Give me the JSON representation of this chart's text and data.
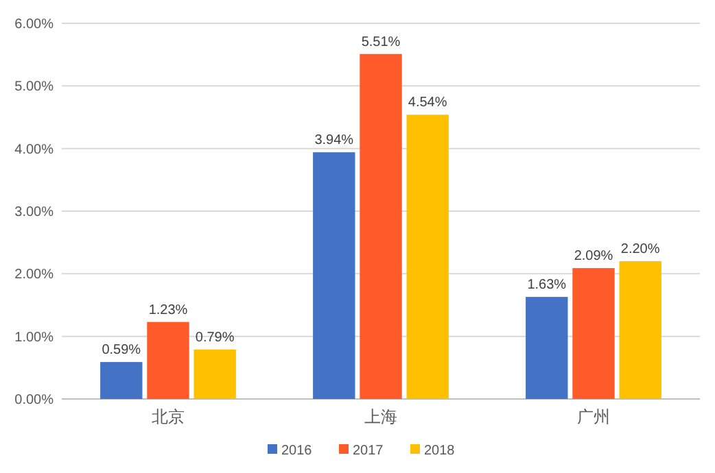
{
  "chart_data": {
    "type": "bar",
    "categories": [
      "北京",
      "上海",
      "广州"
    ],
    "series": [
      {
        "name": "2016",
        "color": "#4472c4",
        "values": [
          0.59,
          3.94,
          1.63
        ],
        "value_labels": [
          "0.59%",
          "3.94%",
          "1.63%"
        ]
      },
      {
        "name": "2017",
        "color": "#ff5a2a",
        "values": [
          1.23,
          5.51,
          2.09
        ],
        "value_labels": [
          "1.23%",
          "5.51%",
          "2.09%"
        ]
      },
      {
        "name": "2018",
        "color": "#ffc000",
        "values": [
          0.79,
          4.54,
          2.2
        ],
        "value_labels": [
          "0.79%",
          "4.54%",
          "2.20%"
        ]
      }
    ],
    "ylim": [
      0,
      6
    ],
    "yticks": [
      {
        "value": 0,
        "label": "0.00%"
      },
      {
        "value": 1,
        "label": "1.00%"
      },
      {
        "value": 2,
        "label": "2.00%"
      },
      {
        "value": 3,
        "label": "3.00%"
      },
      {
        "value": 4,
        "label": "4.00%"
      },
      {
        "value": 5,
        "label": "5.00%"
      },
      {
        "value": 6,
        "label": "6.00%"
      }
    ],
    "grid": "y",
    "legend": "bottom"
  }
}
